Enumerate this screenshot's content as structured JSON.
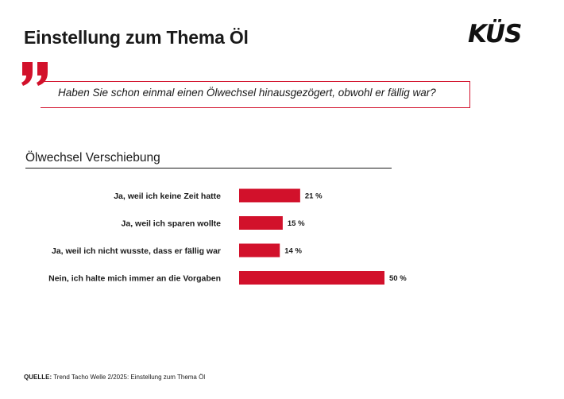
{
  "header": {
    "title": "Einstellung zum Thema Öl",
    "logo_text": "KÜS"
  },
  "question": {
    "text": "Haben Sie schon einmal einen Ölwechsel hinausgezögert, obwohl er fällig war?"
  },
  "colors": {
    "accent": "#d2112b",
    "text": "#1a1a1a"
  },
  "chart_data": {
    "type": "bar",
    "orientation": "horizontal",
    "title": "Ölwechsel Verschiebung",
    "categories": [
      "Ja, weil ich keine Zeit hatte",
      "Ja, weil ich sparen wollte",
      "Ja, weil ich nicht wusste, dass er fällig war",
      "Nein, ich halte mich immer an die Vorgaben"
    ],
    "values": [
      21,
      15,
      14,
      50
    ],
    "value_labels": [
      "21 %",
      "15 %",
      "14 %",
      "50 %"
    ],
    "unit": "%",
    "xlim": [
      0,
      50
    ],
    "grid": false,
    "legend": "none"
  },
  "footer": {
    "source_label": "QUELLE:",
    "source_text": "Trend Tacho Welle 2/2025: Einstellung zum Thema Öl"
  }
}
